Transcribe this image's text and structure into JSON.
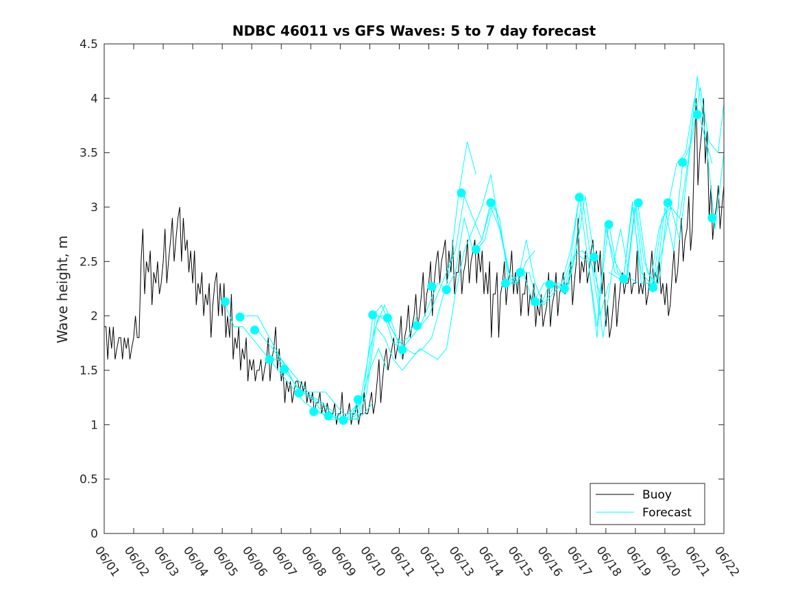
{
  "chart_data": {
    "type": "line",
    "title": "NDBC 46011 vs GFS Waves: 5 to 7 day forecast",
    "xlabel": "",
    "ylabel": "Wave height, m",
    "xlim": [
      "06/01",
      "06/22"
    ],
    "ylim": [
      0,
      4.5
    ],
    "y_ticks": [
      "0",
      "0.5",
      "1",
      "1.5",
      "2",
      "2.5",
      "3",
      "3.5",
      "4",
      "4.5"
    ],
    "x_ticks": [
      "06/01",
      "06/02",
      "06/03",
      "06/04",
      "06/05",
      "06/06",
      "06/07",
      "06/08",
      "06/09",
      "06/10",
      "06/11",
      "06/12",
      "06/13",
      "06/14",
      "06/15",
      "06/16",
      "06/17",
      "06/18",
      "06/19",
      "06/20",
      "06/21",
      "06/22"
    ],
    "x_unit": "day of June",
    "grid": false,
    "legend": {
      "placement": "bottom-right",
      "entries": [
        "Buoy",
        "Forecast"
      ]
    },
    "colors": {
      "buoy": "#000000",
      "forecast": "#00ffff"
    },
    "buoy": {
      "name": "Buoy",
      "x": [
        1.0,
        1.25,
        1.5,
        1.75,
        2.0,
        2.25,
        2.5,
        2.75,
        3.0,
        3.25,
        3.5,
        3.75,
        4.0,
        4.25,
        4.5,
        4.75,
        5.0,
        5.25,
        5.5,
        5.75,
        6.0,
        6.25,
        6.5,
        6.75,
        7.0,
        7.25,
        7.5,
        7.75,
        8.0,
        8.25,
        8.5,
        8.75,
        9.0,
        9.25,
        9.5,
        9.75,
        10.0,
        10.25,
        10.5,
        10.75,
        11.0,
        11.25,
        11.5,
        11.75,
        12.0,
        12.25,
        12.5,
        12.75,
        13.0,
        13.25,
        13.5,
        13.75,
        14.0,
        14.25,
        14.5,
        14.75,
        15.0,
        15.25,
        15.5,
        15.75,
        16.0,
        16.25,
        16.5,
        16.75,
        17.0,
        17.25,
        17.5,
        17.75,
        18.0,
        18.25,
        18.5,
        18.75,
        19.0,
        19.25,
        19.5,
        19.75,
        20.0,
        20.25,
        20.5,
        20.75,
        21.0,
        21.25,
        21.5,
        21.75,
        22.0
      ],
      "y": [
        1.9,
        1.7,
        1.8,
        1.7,
        1.8,
        2.5,
        2.4,
        2.3,
        2.5,
        2.7,
        2.9,
        2.6,
        2.3,
        2.2,
        2.1,
        2.3,
        2.0,
        1.8,
        1.7,
        1.6,
        1.5,
        1.5,
        1.6,
        1.7,
        1.4,
        1.3,
        1.4,
        1.3,
        1.2,
        1.2,
        1.1,
        1.1,
        1.1,
        1.1,
        1.1,
        1.1,
        1.2,
        1.4,
        1.6,
        1.7,
        1.8,
        1.9,
        2.0,
        2.2,
        2.3,
        2.5,
        2.6,
        2.4,
        2.4,
        2.5,
        2.6,
        2.4,
        2.2,
        2.2,
        2.3,
        2.4,
        2.2,
        2.2,
        2.1,
        2.0,
        2.1,
        2.2,
        2.3,
        2.3,
        2.5,
        2.4,
        2.6,
        2.4,
        1.9,
        2.1,
        2.3,
        2.3,
        2.3,
        2.2,
        2.4,
        2.3,
        2.1,
        2.4,
        2.7,
        2.8,
        3.5,
        3.7,
        2.9,
        3.0,
        3.2
      ],
      "y_range_per_sample": [
        [
          1.6,
          1.9
        ],
        [
          1.6,
          1.9
        ],
        [
          1.6,
          1.8
        ],
        [
          1.6,
          1.8
        ],
        [
          1.8,
          2.0
        ],
        [
          2.2,
          2.8
        ],
        [
          2.1,
          2.6
        ],
        [
          2.2,
          2.5
        ],
        [
          2.3,
          2.8
        ],
        [
          2.5,
          2.9
        ],
        [
          2.5,
          3.0
        ],
        [
          2.4,
          2.7
        ],
        [
          2.1,
          2.6
        ],
        [
          2.0,
          2.4
        ],
        [
          1.8,
          2.3
        ],
        [
          2.0,
          2.4
        ],
        [
          1.8,
          2.3
        ],
        [
          1.6,
          2.2
        ],
        [
          1.5,
          1.9
        ],
        [
          1.4,
          1.8
        ],
        [
          1.4,
          1.6
        ],
        [
          1.4,
          1.6
        ],
        [
          1.4,
          1.8
        ],
        [
          1.5,
          1.9
        ],
        [
          1.2,
          1.5
        ],
        [
          1.2,
          1.4
        ],
        [
          1.3,
          1.4
        ],
        [
          1.2,
          1.4
        ],
        [
          1.1,
          1.3
        ],
        [
          1.1,
          1.3
        ],
        [
          1.1,
          1.2
        ],
        [
          1.0,
          1.2
        ],
        [
          1.0,
          1.3
        ],
        [
          1.0,
          1.2
        ],
        [
          1.0,
          1.2
        ],
        [
          1.1,
          1.3
        ],
        [
          1.1,
          1.3
        ],
        [
          1.2,
          1.6
        ],
        [
          1.5,
          1.7
        ],
        [
          1.6,
          1.8
        ],
        [
          1.6,
          2.0
        ],
        [
          1.8,
          2.1
        ],
        [
          1.9,
          2.2
        ],
        [
          2.0,
          2.4
        ],
        [
          2.0,
          2.5
        ],
        [
          2.3,
          2.6
        ],
        [
          2.3,
          2.7
        ],
        [
          2.2,
          2.7
        ],
        [
          2.2,
          2.6
        ],
        [
          2.3,
          2.7
        ],
        [
          2.3,
          2.7
        ],
        [
          2.2,
          2.6
        ],
        [
          1.8,
          2.5
        ],
        [
          1.8,
          2.4
        ],
        [
          2.1,
          2.5
        ],
        [
          2.2,
          2.6
        ],
        [
          2.0,
          2.4
        ],
        [
          2.0,
          2.4
        ],
        [
          1.9,
          2.3
        ],
        [
          1.9,
          2.2
        ],
        [
          1.9,
          2.4
        ],
        [
          2.0,
          2.4
        ],
        [
          2.2,
          2.4
        ],
        [
          2.1,
          2.5
        ],
        [
          2.3,
          2.9
        ],
        [
          2.3,
          2.6
        ],
        [
          2.4,
          2.7
        ],
        [
          2.2,
          2.6
        ],
        [
          1.8,
          2.1
        ],
        [
          1.9,
          2.3
        ],
        [
          2.2,
          2.4
        ],
        [
          2.2,
          2.4
        ],
        [
          2.2,
          2.6
        ],
        [
          2.1,
          2.4
        ],
        [
          2.3,
          2.6
        ],
        [
          2.2,
          2.5
        ],
        [
          2.0,
          2.3
        ],
        [
          2.3,
          2.6
        ],
        [
          2.5,
          2.9
        ],
        [
          2.6,
          3.1
        ],
        [
          3.2,
          4.0
        ],
        [
          3.4,
          4.0
        ],
        [
          2.7,
          3.2
        ],
        [
          2.8,
          3.2
        ],
        [
          3.0,
          3.4
        ]
      ]
    },
    "forecast_runs": [
      {
        "x": [
          5.1,
          5.4,
          5.7,
          6.0,
          6.3,
          6.6,
          6.9,
          7.2,
          7.5,
          7.8,
          8.1,
          8.4,
          8.7,
          9.0,
          9.3,
          9.6
        ],
        "y": [
          2.1,
          1.9,
          1.9,
          1.8,
          1.7,
          1.6,
          1.5,
          1.4,
          1.3,
          1.2,
          1.15,
          1.1,
          1.05,
          1.05,
          1.1,
          1.2
        ]
      },
      {
        "x": [
          5.6,
          5.9,
          6.2,
          6.5,
          6.8,
          7.1,
          7.4,
          7.7,
          8.0,
          8.3,
          8.6,
          8.9,
          9.2,
          9.5,
          9.8,
          10.1
        ],
        "y": [
          2.0,
          2.0,
          2.0,
          1.85,
          1.7,
          1.55,
          1.4,
          1.3,
          1.25,
          1.2,
          1.15,
          1.1,
          1.05,
          1.05,
          1.1,
          1.2
        ]
      },
      {
        "x": [
          6.1,
          6.4,
          6.7,
          7.0,
          7.3,
          7.6,
          7.9,
          8.2,
          8.5,
          8.8,
          9.1,
          9.4,
          9.7,
          10.0,
          10.3,
          10.6
        ],
        "y": [
          1.9,
          1.8,
          1.7,
          1.6,
          1.5,
          1.4,
          1.3,
          1.3,
          1.3,
          1.2,
          1.1,
          1.1,
          1.2,
          1.5,
          1.7,
          1.5
        ]
      },
      {
        "x": [
          6.6,
          6.9,
          7.2,
          7.5,
          7.8,
          8.1,
          8.4,
          8.7,
          9.0,
          9.3,
          9.6,
          9.9,
          10.2,
          10.5,
          10.8,
          11.1
        ],
        "y": [
          1.6,
          1.6,
          1.5,
          1.35,
          1.3,
          1.25,
          1.2,
          1.1,
          1.05,
          1.05,
          1.05,
          1.3,
          1.9,
          2.1,
          1.9,
          1.6
        ]
      },
      {
        "x": [
          7.1,
          7.4,
          7.7,
          8.0,
          8.3,
          8.6,
          8.9,
          9.2,
          9.5,
          9.8,
          10.1,
          10.4,
          10.7,
          11.0,
          11.3,
          11.6
        ],
        "y": [
          1.5,
          1.4,
          1.3,
          1.25,
          1.15,
          1.1,
          1.05,
          1.05,
          1.1,
          1.3,
          2.0,
          2.1,
          1.9,
          1.75,
          1.8,
          2.0
        ]
      },
      {
        "x": [
          8.1,
          8.4,
          8.7,
          9.0,
          9.3,
          9.6,
          9.9,
          10.2,
          10.5,
          10.8,
          11.1,
          11.4,
          11.7,
          12.0,
          12.3,
          12.6
        ],
        "y": [
          1.12,
          1.1,
          1.08,
          1.05,
          1.05,
          1.1,
          1.4,
          2.0,
          2.0,
          1.75,
          1.7,
          1.8,
          1.9,
          2.1,
          2.3,
          2.25
        ]
      },
      {
        "x": [
          9.1,
          9.4,
          9.7,
          10.0,
          10.3,
          10.6,
          10.9,
          11.2,
          11.5,
          11.8,
          12.1,
          12.4,
          12.7,
          13.0,
          13.3,
          13.6
        ],
        "y": [
          1.04,
          1.1,
          1.25,
          1.7,
          2.0,
          1.95,
          1.8,
          1.7,
          1.65,
          1.7,
          1.8,
          2.1,
          2.4,
          3.1,
          3.6,
          3.3
        ]
      },
      {
        "x": [
          10.2,
          10.5,
          10.8,
          11.1,
          11.4,
          11.7,
          12.0,
          12.3,
          12.6,
          12.9,
          13.2,
          13.5,
          13.8,
          14.1,
          14.4,
          14.7
        ],
        "y": [
          1.9,
          1.8,
          1.6,
          1.5,
          1.6,
          1.7,
          1.65,
          1.6,
          1.7,
          2.2,
          2.6,
          2.8,
          3.0,
          3.3,
          2.8,
          2.4
        ]
      },
      {
        "x": [
          11.1,
          11.4,
          11.7,
          12.0,
          12.3,
          12.6,
          12.9,
          13.2,
          13.5,
          13.8,
          14.1,
          14.4,
          14.7,
          15.0,
          15.3,
          15.6
        ],
        "y": [
          1.7,
          1.8,
          1.9,
          2.0,
          2.2,
          2.4,
          2.6,
          3.1,
          2.9,
          2.7,
          3.0,
          2.8,
          2.4,
          2.3,
          2.5,
          2.6
        ]
      },
      {
        "x": [
          12.6,
          12.9,
          13.2,
          13.5,
          13.8,
          14.1,
          14.4,
          14.7,
          15.0,
          15.3,
          15.6,
          15.9,
          16.2,
          16.5,
          16.8,
          17.1
        ],
        "y": [
          2.25,
          2.4,
          2.9,
          2.6,
          2.7,
          3.05,
          2.9,
          2.3,
          2.3,
          2.7,
          2.3,
          2.1,
          2.2,
          2.3,
          2.6,
          3.1
        ]
      },
      {
        "x": [
          13.6,
          13.9,
          14.2,
          14.5,
          14.8,
          15.1,
          15.4,
          15.7,
          16.0,
          16.3,
          16.6,
          16.9,
          17.2,
          17.5,
          17.8,
          18.1
        ],
        "y": [
          2.6,
          2.7,
          3.05,
          2.7,
          2.3,
          2.4,
          2.4,
          2.1,
          2.15,
          2.3,
          2.2,
          2.5,
          3.1,
          2.5,
          2.0,
          2.3
        ]
      },
      {
        "x": [
          14.6,
          14.9,
          15.2,
          15.5,
          15.8,
          16.1,
          16.4,
          16.7,
          17.0,
          17.3,
          17.6,
          17.9,
          18.2,
          18.5,
          18.8,
          19.1
        ],
        "y": [
          2.3,
          2.35,
          2.4,
          2.15,
          2.1,
          2.3,
          2.3,
          2.25,
          2.6,
          3.1,
          2.55,
          1.8,
          2.4,
          2.8,
          2.35,
          2.3
        ]
      },
      {
        "x": [
          15.6,
          15.9,
          16.2,
          16.5,
          16.8,
          17.1,
          17.4,
          17.7,
          18.0,
          18.3,
          18.6,
          18.9,
          19.2,
          19.5,
          19.8,
          20.1
        ],
        "y": [
          2.15,
          2.3,
          2.3,
          2.25,
          2.5,
          3.1,
          2.5,
          1.8,
          2.85,
          2.4,
          2.35,
          3.05,
          2.3,
          2.3,
          2.3,
          3.05
        ]
      },
      {
        "x": [
          16.6,
          16.9,
          17.2,
          17.5,
          17.8,
          18.1,
          18.4,
          18.7,
          19.0,
          19.3,
          19.6,
          19.9,
          20.2,
          20.5,
          20.8,
          21.1
        ],
        "y": [
          2.25,
          2.55,
          2.6,
          2.5,
          2.2,
          2.85,
          2.4,
          2.35,
          3.05,
          2.5,
          2.3,
          2.6,
          3.0,
          2.9,
          3.45,
          4.2
        ]
      },
      {
        "x": [
          17.1,
          17.4,
          17.7,
          18.0,
          18.3,
          18.6,
          18.9,
          19.2,
          19.5,
          19.8,
          20.1,
          20.4,
          20.7,
          21.0,
          21.3,
          21.6
        ],
        "y": [
          2.55,
          2.5,
          1.9,
          2.8,
          2.5,
          2.35,
          3.0,
          2.4,
          2.3,
          2.8,
          3.0,
          3.4,
          3.5,
          4.0,
          3.7,
          3.4
        ]
      },
      {
        "x": [
          18.1,
          18.4,
          18.7,
          19.0,
          19.3,
          19.6,
          19.9,
          20.2,
          20.5,
          20.8,
          21.1,
          21.4,
          21.7,
          22.0
        ],
        "y": [
          2.4,
          2.35,
          2.3,
          3.0,
          2.3,
          2.3,
          2.9,
          3.0,
          2.7,
          3.4,
          4.2,
          3.6,
          2.8,
          3.5
        ]
      },
      {
        "x": [
          19.1,
          19.4,
          19.7,
          20.0,
          20.3,
          20.6,
          20.9,
          21.2,
          21.5,
          21.8,
          22.0
        ],
        "y": [
          3.0,
          2.4,
          2.3,
          3.0,
          2.6,
          3.4,
          3.6,
          4.1,
          3.6,
          3.5,
          3.95
        ]
      }
    ],
    "forecast_markers": {
      "x": [
        5.1,
        5.6,
        6.1,
        6.6,
        7.1,
        7.6,
        8.1,
        8.6,
        9.1,
        9.6,
        10.1,
        10.6,
        11.1,
        11.6,
        12.1,
        12.6,
        13.1,
        13.6,
        14.1,
        14.6,
        15.1,
        15.6,
        16.1,
        16.6,
        17.1,
        17.6,
        18.1,
        18.6,
        19.1,
        19.6,
        20.1,
        20.6,
        21.1,
        21.6
      ],
      "y": [
        2.13,
        1.99,
        1.87,
        1.6,
        1.51,
        1.29,
        1.12,
        1.08,
        1.04,
        1.23,
        2.01,
        1.98,
        1.69,
        1.91,
        2.27,
        2.24,
        3.13,
        2.61,
        3.04,
        2.3,
        2.4,
        2.13,
        2.29,
        2.25,
        3.09,
        2.54,
        2.84,
        2.34,
        3.04,
        2.26,
        3.04,
        3.41,
        3.85,
        2.9
      ]
    }
  }
}
